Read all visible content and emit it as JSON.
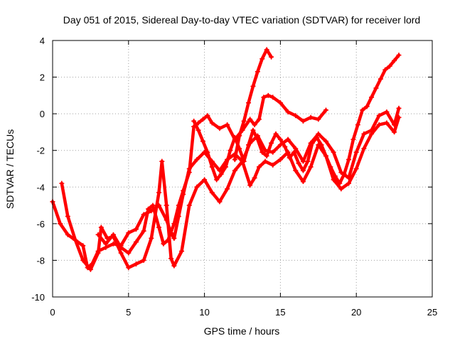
{
  "chart_data": {
    "type": "scatter",
    "title": "Day 051 of 2015, Sidereal Day-to-day VTEC variation (SDTVAR) for receiver lord",
    "xlabel": "GPS time / hours",
    "ylabel": "SDTVAR / TECUs",
    "xlim": [
      0,
      25
    ],
    "ylim": [
      -10,
      4
    ],
    "xticks": [
      "0",
      "5",
      "10",
      "15",
      "20",
      "25"
    ],
    "yticks": [
      "-10",
      "-8",
      "-6",
      "-4",
      "-2",
      "0",
      "2",
      "4"
    ],
    "grid": true,
    "marker": "+",
    "color": "#ff0000",
    "series": [
      {
        "x": [
          0.0,
          0.5,
          1.0,
          1.5,
          2.0,
          2.3,
          2.6,
          3.0,
          3.5,
          4.0,
          4.5,
          5.0,
          5.5,
          6.0,
          6.5,
          7.0,
          7.5,
          7.8,
          8.0,
          8.3,
          8.6,
          9.0,
          9.5,
          10.0,
          10.5,
          11.0,
          11.5,
          12.0,
          12.5,
          13.0,
          13.5,
          14.0,
          14.5,
          15.0,
          15.5,
          16.0,
          16.5,
          17.0,
          17.5,
          18.0,
          18.5,
          19.0,
          19.5,
          20.0,
          20.5,
          21.0,
          21.5,
          22.0,
          22.5,
          22.8
        ],
        "y": [
          -4.8,
          -6.0,
          -6.6,
          -6.9,
          -7.2,
          -8.4,
          -8.2,
          -7.5,
          -7.3,
          -7.1,
          -7.2,
          -6.5,
          -6.3,
          -5.5,
          -5.3,
          -5.0,
          -5.8,
          -6.5,
          -6.8,
          -5.6,
          -4.4,
          -3.0,
          -2.5,
          -2.1,
          -2.6,
          -3.1,
          -2.5,
          -2.2,
          -2.6,
          -1.6,
          -1.2,
          -2.0,
          -2.1,
          -1.7,
          -1.4,
          -1.9,
          -2.6,
          -1.6,
          -1.1,
          -1.5,
          -2.1,
          -3.2,
          -3.5,
          -2.1,
          -1.1,
          -0.9,
          -0.1,
          0.1,
          -0.6,
          0.3
        ]
      },
      {
        "x": [
          0.6,
          1.0,
          1.5,
          2.0,
          2.5,
          3.0,
          3.2,
          3.6,
          4.0,
          4.5,
          5.0,
          5.5,
          6.0,
          6.5,
          7.0,
          7.2,
          7.5,
          7.8,
          8.0,
          8.5,
          9.0,
          9.5,
          10.0,
          10.5,
          11.0,
          11.5,
          12.0,
          12.5,
          13.0,
          13.3,
          13.6,
          14.0,
          14.5,
          15.0,
          15.5,
          16.0,
          16.5,
          17.0,
          17.5,
          18.0,
          18.5,
          19.0,
          19.5,
          20.0,
          20.5,
          21.0,
          21.5,
          22.0,
          22.5,
          22.8
        ],
        "y": [
          -3.8,
          -5.6,
          -6.9,
          -8.0,
          -8.5,
          -7.6,
          -6.2,
          -6.8,
          -6.7,
          -7.6,
          -8.4,
          -8.2,
          -8.0,
          -6.8,
          -4.3,
          -2.6,
          -5.0,
          -7.9,
          -8.3,
          -7.5,
          -5.0,
          -4.0,
          -3.6,
          -4.3,
          -4.8,
          -4.1,
          -3.1,
          -2.6,
          -3.9,
          -3.5,
          -2.9,
          -2.6,
          -2.8,
          -2.5,
          -2.1,
          -3.1,
          -3.7,
          -2.9,
          -1.7,
          -2.3,
          -3.6,
          -4.1,
          -3.8,
          -3.0,
          -1.9,
          -1.1,
          -0.6,
          -0.5,
          -1.0,
          -0.2
        ]
      },
      {
        "x": [
          3.0,
          3.5,
          4.0,
          4.5,
          5.0,
          5.5,
          6.0,
          6.3,
          6.6,
          7.0,
          7.3,
          7.6,
          8.0,
          8.3,
          8.6,
          9.0,
          9.3,
          9.6,
          9.9,
          10.2,
          10.5,
          11.0,
          11.5,
          12.0,
          12.5,
          13.0,
          13.3,
          13.6,
          13.9,
          14.2,
          14.5,
          15.0,
          15.5,
          16.0,
          16.5,
          17.0,
          17.5,
          18.0
        ],
        "y": [
          -6.6,
          -7.1,
          -6.6,
          -7.3,
          -7.6,
          -7.0,
          -6.4,
          -5.2,
          -5.0,
          -6.2,
          -7.1,
          -6.9,
          -6.0,
          -5.0,
          -4.2,
          -3.2,
          -0.7,
          -0.5,
          -0.3,
          -0.1,
          -0.5,
          -0.8,
          -0.6,
          -1.4,
          -0.9,
          -0.3,
          -0.6,
          -0.3,
          0.9,
          1.0,
          0.9,
          0.6,
          0.1,
          -0.1,
          -0.4,
          -0.2,
          -0.3,
          0.2
        ]
      },
      {
        "x": [
          12.0,
          12.3,
          12.6,
          12.9,
          13.2,
          13.5,
          13.8,
          14.1,
          14.4
        ],
        "y": [
          -2.5,
          -1.2,
          -0.4,
          0.6,
          1.5,
          2.3,
          3.0,
          3.5,
          3.1
        ]
      },
      {
        "x": [
          9.3,
          9.6,
          9.9,
          10.2,
          10.5,
          10.8,
          11.1,
          11.4,
          11.7,
          12.0,
          12.3,
          12.6,
          12.9,
          13.2,
          13.5,
          13.8,
          14.1,
          14.4,
          14.7,
          15.0,
          15.3,
          15.6,
          15.9,
          16.2,
          16.5,
          16.8,
          17.1,
          17.4,
          17.7,
          18.0,
          18.3,
          18.6,
          18.9,
          19.2,
          19.5,
          19.8,
          20.1,
          20.4,
          20.7,
          21.0,
          21.3,
          21.6,
          21.9,
          22.2,
          22.5,
          22.8
        ],
        "y": [
          -0.4,
          -0.9,
          -1.5,
          -2.1,
          -2.9,
          -3.6,
          -3.3,
          -2.9,
          -2.0,
          -1.3,
          -1.9,
          -2.6,
          -1.7,
          -0.9,
          -1.4,
          -2.1,
          -2.3,
          -1.6,
          -1.1,
          -1.4,
          -1.8,
          -2.4,
          -2.1,
          -2.7,
          -3.1,
          -2.6,
          -1.6,
          -1.3,
          -1.7,
          -2.3,
          -2.9,
          -3.4,
          -3.8,
          -3.3,
          -2.5,
          -1.4,
          -0.6,
          0.2,
          0.4,
          0.9,
          1.4,
          1.9,
          2.4,
          2.6,
          2.9,
          3.2
        ]
      }
    ]
  }
}
